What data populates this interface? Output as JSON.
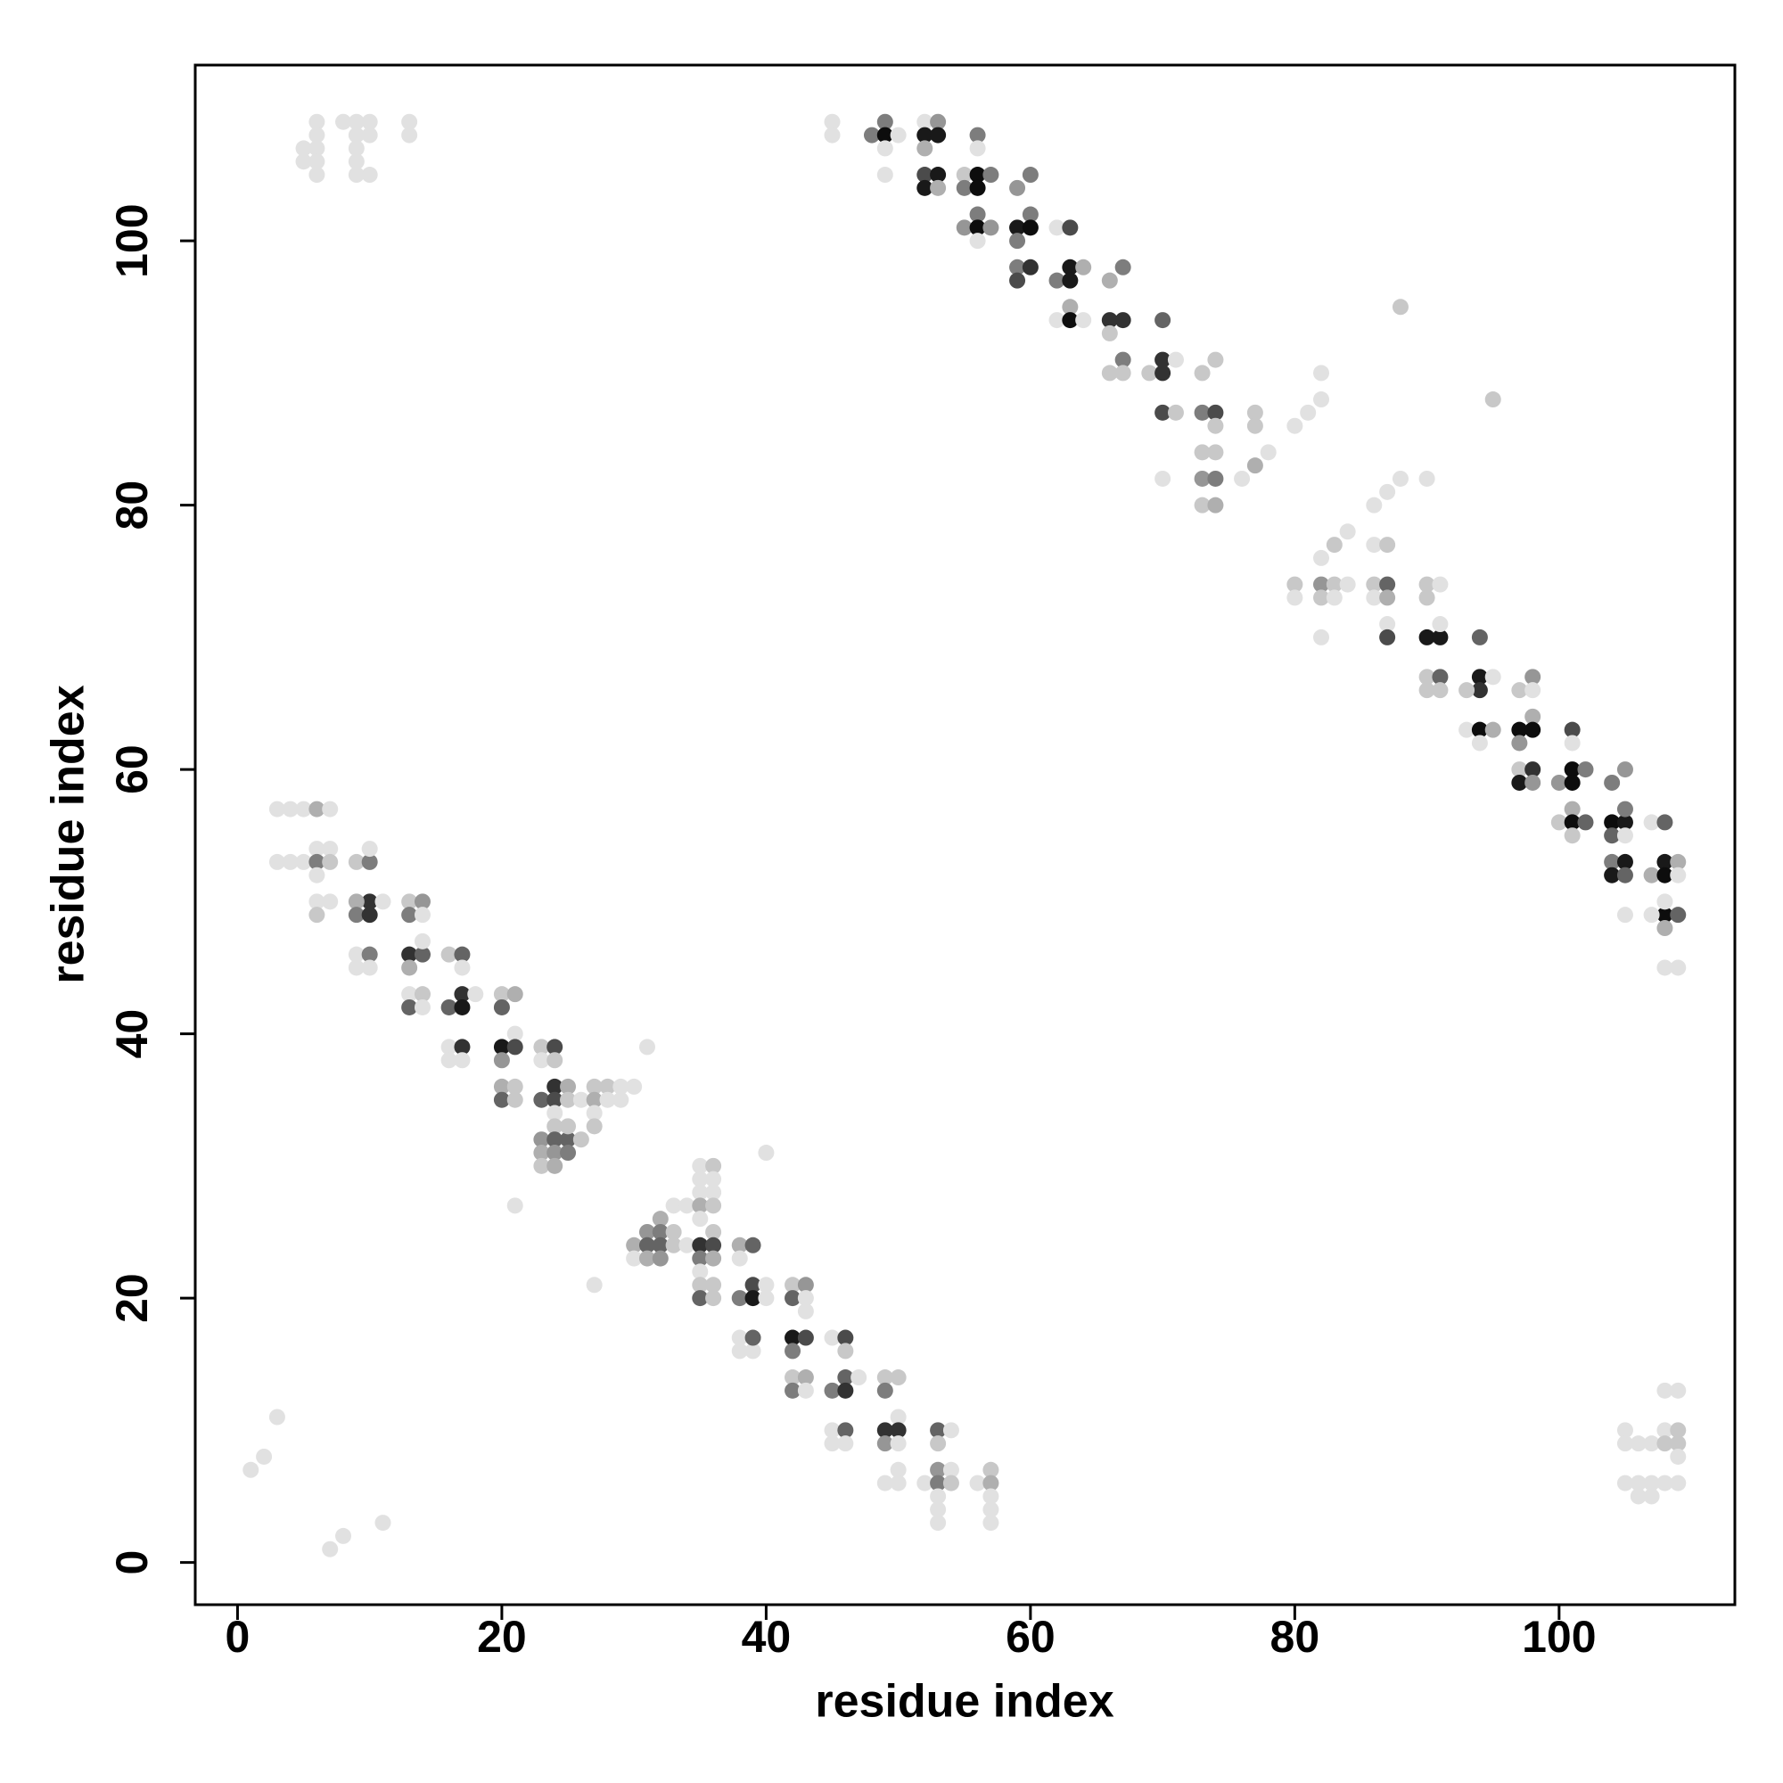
{
  "chart_data": {
    "type": "scatter",
    "x_label": "residue index",
    "y_label": "residue index",
    "xlim": [
      -3.2,
      113.3
    ],
    "ylim": [
      -3.2,
      113.3
    ],
    "xticks": [
      0,
      20,
      40,
      60,
      80,
      100
    ],
    "yticks": [
      0,
      20,
      40,
      60,
      80,
      100
    ],
    "color": "#000000",
    "grid": false,
    "x": [
      6,
      6,
      5,
      6,
      5,
      6,
      6,
      8,
      9,
      9,
      9,
      10,
      10,
      9,
      9,
      10,
      13,
      13,
      45,
      45,
      48,
      49,
      49,
      49,
      49,
      50,
      52,
      52,
      52,
      53,
      53,
      52,
      53,
      52,
      53,
      55,
      55,
      56,
      56,
      57,
      56,
      56,
      56,
      55,
      56,
      57,
      56,
      59,
      60,
      60,
      59,
      60,
      59,
      59,
      60,
      59,
      62,
      63,
      62,
      63,
      63,
      64,
      62,
      63,
      63,
      64,
      66,
      67,
      66,
      67,
      66,
      67,
      66,
      67,
      69,
      70,
      70,
      70,
      70,
      71,
      71,
      73,
      74,
      73,
      74,
      74,
      73,
      74,
      73,
      74,
      73,
      74,
      70,
      77,
      77,
      76,
      77,
      78,
      80,
      81,
      82,
      82,
      88,
      95,
      86,
      87,
      88,
      90,
      83,
      84,
      86,
      87,
      80,
      80,
      82,
      82,
      83,
      84,
      83,
      86,
      86,
      87,
      87,
      87,
      87,
      82,
      82,
      90,
      91,
      90,
      90,
      91,
      91,
      90,
      91,
      90,
      91,
      94,
      94,
      94,
      95,
      93,
      93,
      94,
      95,
      94,
      97,
      98,
      98,
      98,
      97,
      98,
      97,
      97,
      98,
      97,
      98,
      101,
      100,
      101,
      101,
      102,
      101,
      100,
      101,
      101,
      102,
      101,
      104,
      105,
      104,
      105,
      105,
      104,
      105,
      104,
      105,
      104,
      105,
      105,
      107,
      108,
      107,
      108,
      108,
      109,
      109,
      108,
      109,
      107,
      108,
      108,
      108,
      109,
      108,
      109,
      105,
      105,
      106,
      107,
      108,
      108,
      109,
      109,
      109,
      105,
      106,
      107,
      106,
      107,
      108,
      109,
      3,
      4,
      5,
      6,
      7,
      3,
      4,
      5,
      6,
      7,
      6,
      7,
      6,
      6,
      7,
      6,
      9,
      10,
      10,
      10,
      9,
      11,
      9,
      10,
      9,
      10,
      9,
      10,
      13,
      14,
      13,
      14,
      13,
      14,
      13,
      14,
      13,
      14,
      13,
      14,
      16,
      17,
      17,
      17,
      16,
      17,
      18,
      16,
      17,
      16,
      17,
      20,
      21,
      20,
      21,
      20,
      21,
      20,
      20,
      21,
      20,
      21,
      23,
      24,
      23,
      24,
      24,
      23,
      24,
      25,
      25,
      26,
      24,
      24,
      23,
      24,
      25,
      26,
      25,
      23,
      24,
      25,
      23,
      24,
      27,
      27,
      28,
      29,
      30,
      28,
      29,
      27,
      27,
      31,
      21,
      27,
      40,
      35,
      36,
      35,
      36,
      35,
      36,
      33,
      34,
      35,
      36,
      32,
      31,
      32,
      33,
      35,
      36,
      30,
      31,
      32,
      33,
      34,
      35,
      36,
      30,
      31,
      32,
      35,
      36,
      35,
      36,
      35,
      35,
      36,
      38,
      39,
      38,
      39,
      40,
      38,
      39,
      40,
      42,
      43,
      42,
      43,
      43,
      42,
      43,
      42,
      38,
      38,
      39,
      39,
      45,
      46,
      46,
      42,
      43,
      42,
      43,
      45,
      46,
      46,
      47,
      45,
      46,
      45,
      46,
      49,
      50,
      49,
      50,
      49,
      50,
      49,
      50,
      50,
      49,
      50,
      53,
      54,
      53,
      53,
      54,
      52,
      53,
      54,
      53,
      53,
      53,
      56,
      57,
      57,
      57,
      57,
      57,
      1,
      2,
      3,
      7,
      8,
      11
    ],
    "y": [
      109,
      108,
      107,
      107,
      106,
      106,
      105,
      109,
      109,
      108,
      107,
      109,
      108,
      106,
      105,
      105,
      109,
      108,
      109,
      108,
      108,
      109,
      108,
      107,
      105,
      108,
      109,
      108,
      107,
      109,
      108,
      105,
      105,
      104,
      104,
      105,
      104,
      105,
      104,
      105,
      108,
      107,
      102,
      101,
      101,
      101,
      100,
      104,
      105,
      102,
      101,
      101,
      100,
      98,
      98,
      97,
      101,
      101,
      97,
      98,
      97,
      98,
      94,
      95,
      94,
      94,
      97,
      98,
      94,
      94,
      93,
      91,
      90,
      90,
      90,
      91,
      90,
      94,
      87,
      87,
      91,
      90,
      91,
      87,
      87,
      86,
      84,
      84,
      82,
      82,
      80,
      80,
      82,
      87,
      86,
      82,
      83,
      84,
      86,
      87,
      88,
      90,
      95,
      88,
      80,
      81,
      82,
      82,
      77,
      78,
      77,
      77,
      74,
      73,
      74,
      73,
      74,
      74,
      73,
      74,
      73,
      74,
      73,
      71,
      70,
      76,
      70,
      74,
      74,
      73,
      70,
      70,
      71,
      67,
      67,
      66,
      66,
      70,
      67,
      66,
      67,
      66,
      63,
      63,
      63,
      62,
      66,
      67,
      66,
      64,
      63,
      63,
      62,
      60,
      60,
      59,
      59,
      63,
      59,
      60,
      59,
      60,
      62,
      56,
      57,
      56,
      56,
      55,
      59,
      60,
      56,
      56,
      57,
      55,
      55,
      53,
      53,
      52,
      52,
      49,
      56,
      56,
      52,
      53,
      52,
      53,
      52,
      49,
      49,
      49,
      48,
      50,
      45,
      45,
      13,
      13,
      10,
      9,
      9,
      9,
      10,
      9,
      10,
      9,
      8,
      6,
      6,
      6,
      5,
      5,
      6,
      6,
      57,
      57,
      57,
      57,
      57,
      53,
      53,
      53,
      54,
      54,
      53,
      53,
      52,
      50,
      50,
      49,
      53,
      53,
      54,
      50,
      50,
      50,
      49,
      49,
      46,
      46,
      45,
      45,
      50,
      50,
      49,
      49,
      46,
      46,
      45,
      47,
      43,
      43,
      42,
      42,
      46,
      46,
      45,
      43,
      42,
      42,
      43,
      39,
      39,
      38,
      38,
      43,
      43,
      42,
      40,
      39,
      39,
      38,
      36,
      36,
      35,
      35,
      39,
      39,
      38,
      38,
      36,
      35,
      35,
      36,
      35,
      35,
      34,
      33,
      32,
      32,
      32,
      32,
      33,
      31,
      31,
      31,
      30,
      30,
      36,
      35,
      36,
      36,
      36,
      35,
      35,
      34,
      33,
      39,
      27,
      21,
      31,
      30,
      30,
      29,
      29,
      28,
      28,
      27,
      27,
      27,
      27,
      26,
      25,
      25,
      25,
      26,
      25,
      24,
      24,
      24,
      24,
      24,
      24,
      24,
      23,
      23,
      23,
      23,
      23,
      22,
      21,
      21,
      20,
      20,
      24,
      24,
      23,
      21,
      21,
      20,
      20,
      20,
      21,
      21,
      20,
      20,
      19,
      17,
      17,
      16,
      17,
      16,
      16,
      17,
      17,
      17,
      16,
      14,
      14,
      13,
      13,
      13,
      14,
      13,
      14,
      10,
      10,
      9,
      9,
      14,
      14,
      13,
      11,
      10,
      10,
      9,
      9,
      7,
      6,
      6,
      10,
      10,
      9,
      7,
      7,
      6,
      6,
      6,
      5,
      4,
      3,
      6,
      7,
      6,
      5,
      4,
      3,
      7,
      8,
      11,
      1,
      2,
      3
    ],
    "shade": [
      0.1,
      0.1,
      0.1,
      0.1,
      0.1,
      0.1,
      0.1,
      0.1,
      0.1,
      0.1,
      0.1,
      0.1,
      0.1,
      0.1,
      0.1,
      0.1,
      0.1,
      0.1,
      0.1,
      0.1,
      0.5,
      0.5,
      0.95,
      0.1,
      0.1,
      0.1,
      0.1,
      0.9,
      0.3,
      0.4,
      0.9,
      0.7,
      0.9,
      0.9,
      0.3,
      0.2,
      0.5,
      0.95,
      0.95,
      0.5,
      0.5,
      0.1,
      0.5,
      0.4,
      0.95,
      0.4,
      0.1,
      0.4,
      0.5,
      0.5,
      0.9,
      0.95,
      0.5,
      0.5,
      0.8,
      0.7,
      0.1,
      0.7,
      0.5,
      0.9,
      0.9,
      0.3,
      0.1,
      0.3,
      0.95,
      0.1,
      0.3,
      0.5,
      0.8,
      0.8,
      0.2,
      0.5,
      0.2,
      0.2,
      0.2,
      0.8,
      0.8,
      0.6,
      0.7,
      0.2,
      0.1,
      0.2,
      0.2,
      0.5,
      0.7,
      0.2,
      0.2,
      0.2,
      0.4,
      0.5,
      0.2,
      0.3,
      0.1,
      0.2,
      0.2,
      0.1,
      0.3,
      0.1,
      0.1,
      0.1,
      0.1,
      0.1,
      0.2,
      0.2,
      0.1,
      0.1,
      0.1,
      0.1,
      0.2,
      0.1,
      0.1,
      0.2,
      0.2,
      0.1,
      0.4,
      0.2,
      0.2,
      0.1,
      0.1,
      0.2,
      0.1,
      0.6,
      0.3,
      0.1,
      0.7,
      0.1,
      0.1,
      0.2,
      0.1,
      0.2,
      0.9,
      0.9,
      0.1,
      0.2,
      0.6,
      0.2,
      0.2,
      0.6,
      0.9,
      0.8,
      0.1,
      0.2,
      0.1,
      0.95,
      0.3,
      0.1,
      0.2,
      0.4,
      0.1,
      0.3,
      0.95,
      0.95,
      0.4,
      0.2,
      0.8,
      0.9,
      0.4,
      0.7,
      0.4,
      0.95,
      0.95,
      0.5,
      0.1,
      0.2,
      0.3,
      0.95,
      0.6,
      0.2,
      0.5,
      0.4,
      0.95,
      0.9,
      0.5,
      0.6,
      0.1,
      0.5,
      0.9,
      0.9,
      0.6,
      0.1,
      0.1,
      0.6,
      0.3,
      0.9,
      0.95,
      0.3,
      0.1,
      0.95,
      0.6,
      0.1,
      0.3,
      0.1,
      0.1,
      0.1,
      0.1,
      0.1,
      0.1,
      0.1,
      0.1,
      0.1,
      0.1,
      0.2,
      0.2,
      0.2,
      0.1,
      0.1,
      0.1,
      0.1,
      0.1,
      0.1,
      0.1,
      0.1,
      0.1,
      0.1,
      0.1,
      0.3,
      0.1,
      0.1,
      0.1,
      0.1,
      0.1,
      0.1,
      0.5,
      0.2,
      0.1,
      0.1,
      0.1,
      0.2,
      0.2,
      0.5,
      0.1,
      0.8,
      0.3,
      0.1,
      0.5,
      0.8,
      0.1,
      0.5,
      0.1,
      0.1,
      0.2,
      0.4,
      0.5,
      0.1,
      0.8,
      0.6,
      0.3,
      0.1,
      0.1,
      0.2,
      0.6,
      0.1,
      0.2,
      0.6,
      0.1,
      0.8,
      0.6,
      0.9,
      0.1,
      0.1,
      0.8,
      0.1,
      0.1,
      0.2,
      0.3,
      0.6,
      0.1,
      0.9,
      0.7,
      0.4,
      0.3,
      0.2,
      0.6,
      0.2,
      0.2,
      0.7,
      0.1,
      0.2,
      0.8,
      0.6,
      0.7,
      0.3,
      0.2,
      0.1,
      0.1,
      0.2,
      0.4,
      0.6,
      0.6,
      0.2,
      0.2,
      0.3,
      0.4,
      0.5,
      0.2,
      0.3,
      0.2,
      0.3,
      0.2,
      0.1,
      0.1,
      0.1,
      0.1,
      0.1,
      0.2,
      0.1,
      0.1,
      0.1,
      0.1,
      0.1,
      0.2,
      0.1,
      0.1,
      0.1,
      0.1,
      0.1,
      0.1,
      0.3,
      0.2,
      0.3,
      0.4,
      0.5,
      0.2,
      0.1,
      0.2,
      0.3,
      0.6,
      0.6,
      0.2,
      0.1,
      0.8,
      0.7,
      0.1,
      0.3,
      0.4,
      0.5,
      0.3,
      0.1,
      0.2,
      0.2,
      0.6,
      0.2,
      0.3,
      0.6,
      0.1,
      0.7,
      0.1,
      0.5,
      0.9,
      0.1,
      0.2,
      0.4,
      0.6,
      0.1,
      0.1,
      0.9,
      0.7,
      0.5,
      0.1,
      0.1,
      0.1,
      0.6,
      0.1,
      0.7,
      0.2,
      0.2,
      0.3,
      0.5,
      0.1,
      0.5,
      0.6,
      0.8,
      0.1,
      0.1,
      0.6,
      0.1,
      0.1,
      0.2,
      0.2,
      0.5,
      0.1,
      0.8,
      0.8,
      0.4,
      0.1,
      0.1,
      0.1,
      0.1,
      0.6,
      0.1,
      0.2,
      0.4,
      0.1,
      0.1,
      0.5,
      0.2,
      0.1,
      0.1,
      0.1,
      0.1,
      0.2,
      0.3,
      0.1,
      0.1,
      0.1,
      0.1,
      0.1,
      0.1,
      0.1,
      0.1,
      0.1
    ]
  }
}
